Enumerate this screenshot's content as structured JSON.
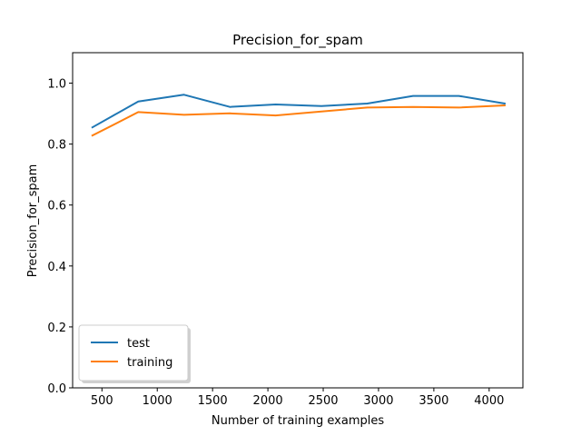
{
  "chart_data": {
    "type": "line",
    "title": "Precision_for_spam",
    "xlabel": "Number of training examples",
    "ylabel": "Precision_for_spam",
    "xlim": [
      235,
      4305
    ],
    "ylim": [
      0.0,
      1.1
    ],
    "xticks": [
      500,
      1000,
      1500,
      2000,
      2500,
      3000,
      3500,
      4000
    ],
    "yticks": [
      0.0,
      0.2,
      0.4,
      0.6,
      0.8,
      1.0
    ],
    "xtick_labels": [
      "500",
      "1000",
      "1500",
      "2000",
      "2500",
      "3000",
      "3500",
      "4000"
    ],
    "ytick_labels": [
      "0.0",
      "0.2",
      "0.4",
      "0.6",
      "0.8",
      "1.0"
    ],
    "grid": false,
    "legend_position": "lower-left",
    "x": [
      414,
      828,
      1242,
      1656,
      2070,
      2484,
      2898,
      3312,
      3726,
      4140
    ],
    "series": [
      {
        "name": "test",
        "color": "#1f77b4",
        "values": [
          0.855,
          0.94,
          0.962,
          0.922,
          0.93,
          0.925,
          0.933,
          0.958,
          0.958,
          0.933
        ]
      },
      {
        "name": "training",
        "color": "#ff7f0e",
        "values": [
          0.828,
          0.905,
          0.896,
          0.901,
          0.894,
          0.907,
          0.92,
          0.922,
          0.92,
          0.927
        ]
      }
    ]
  }
}
